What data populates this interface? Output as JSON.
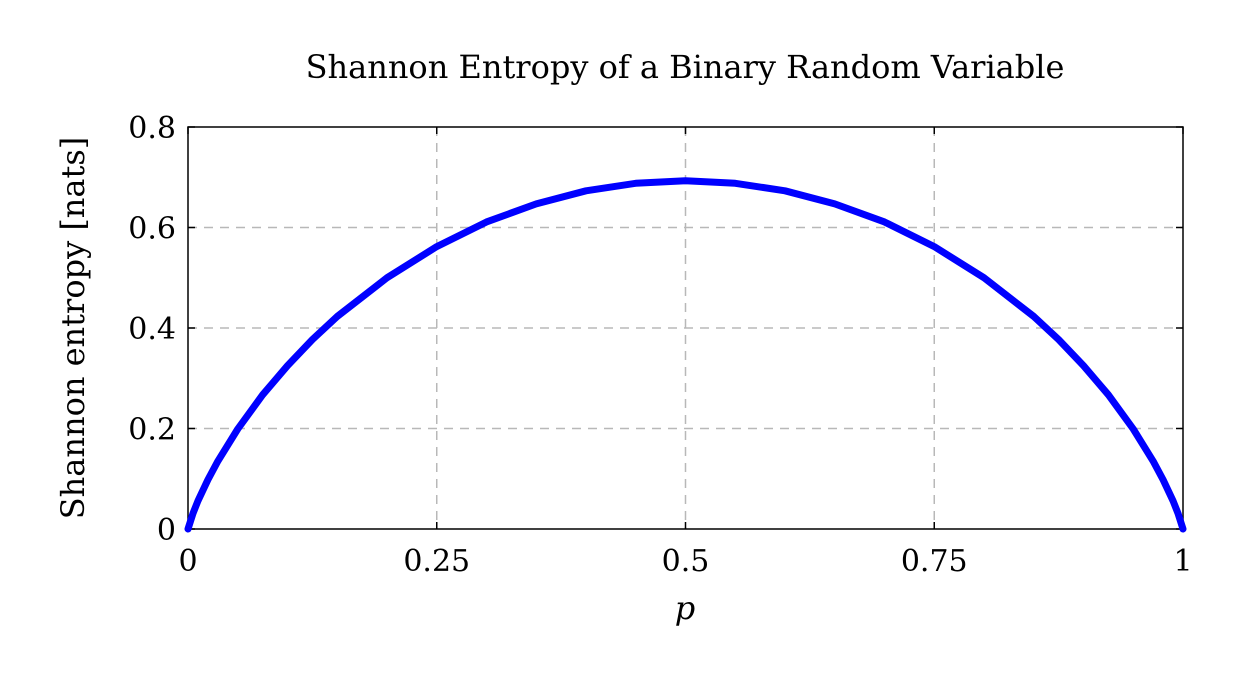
{
  "chart_data": {
    "type": "line",
    "title": "Shannon Entropy of a Binary Random Variable",
    "xlabel": "p",
    "ylabel": "Shannon entropy [nats]",
    "xlim": [
      0,
      1
    ],
    "ylim": [
      0,
      0.8
    ],
    "xticks": [
      {
        "value": 0,
        "label": "0"
      },
      {
        "value": 0.25,
        "label": "0.25"
      },
      {
        "value": 0.5,
        "label": "0.5"
      },
      {
        "value": 0.75,
        "label": "0.75"
      },
      {
        "value": 1,
        "label": "1"
      }
    ],
    "yticks": [
      {
        "value": 0,
        "label": "0"
      },
      {
        "value": 0.2,
        "label": "0.2"
      },
      {
        "value": 0.4,
        "label": "0.4"
      },
      {
        "value": 0.6,
        "label": "0.6"
      },
      {
        "value": 0.8,
        "label": "0.8"
      }
    ],
    "grid": true,
    "series": [
      {
        "color": "#0000ff",
        "x": [
          0,
          0.005,
          0.01,
          0.02,
          0.03,
          0.05,
          0.075,
          0.1,
          0.125,
          0.15,
          0.2,
          0.25,
          0.3,
          0.35,
          0.4,
          0.45,
          0.5,
          0.55,
          0.6,
          0.65,
          0.7,
          0.75,
          0.8,
          0.85,
          0.875,
          0.9,
          0.925,
          0.95,
          0.97,
          0.98,
          0.99,
          0.995,
          1
        ],
        "y": [
          0,
          0.031,
          0.056,
          0.098,
          0.135,
          0.199,
          0.267,
          0.325,
          0.377,
          0.423,
          0.5,
          0.562,
          0.611,
          0.647,
          0.673,
          0.688,
          0.693,
          0.688,
          0.673,
          0.647,
          0.611,
          0.562,
          0.5,
          0.423,
          0.377,
          0.325,
          0.267,
          0.199,
          0.135,
          0.098,
          0.056,
          0.031,
          0
        ]
      }
    ]
  }
}
